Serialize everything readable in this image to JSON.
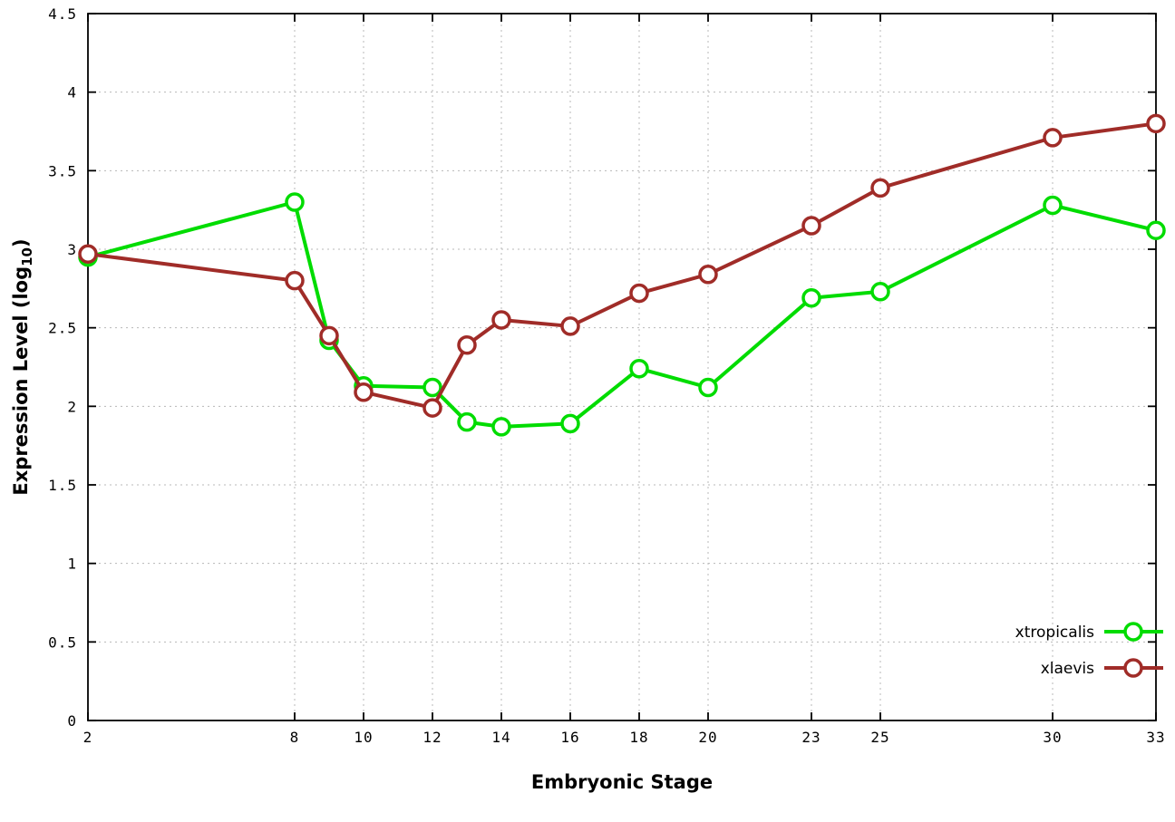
{
  "chart_data": {
    "type": "line",
    "title": "",
    "xlabel": "Embryonic Stage",
    "ylabel": "Expression Level (log10)",
    "ylabel_parts": {
      "main": "Expression Level (log",
      "sub": "10",
      "end": ")"
    },
    "xlim": [
      2,
      33
    ],
    "ylim": [
      0,
      4.5
    ],
    "grid": true,
    "legend_position": "bottom-right",
    "xticks": {
      "values": [
        2,
        8,
        10,
        12,
        14,
        16,
        18,
        20,
        23,
        25,
        30,
        33
      ],
      "labels": [
        "2",
        "8",
        "10",
        "12",
        "14",
        "16",
        "18",
        "20",
        "23",
        "25",
        "30",
        "33"
      ]
    },
    "yticks": {
      "values": [
        0,
        0.5,
        1,
        1.5,
        2,
        2.5,
        3,
        3.5,
        4,
        4.5
      ],
      "labels": [
        "0",
        "0.5",
        "1",
        "1.5",
        "2",
        "2.5",
        "3",
        "3.5",
        "4",
        "4.5"
      ]
    },
    "x": [
      2,
      8,
      9,
      10,
      12,
      13,
      14,
      16,
      18,
      20,
      23,
      25,
      30,
      33
    ],
    "series": [
      {
        "name": "xtropicalis",
        "color": "#00dc00",
        "values": [
          2.95,
          3.3,
          2.42,
          2.13,
          2.12,
          1.9,
          1.87,
          1.89,
          2.24,
          2.12,
          2.69,
          2.73,
          3.28,
          3.12
        ]
      },
      {
        "name": "xlaevis",
        "color": "#a02c28",
        "values": [
          2.97,
          2.8,
          2.45,
          2.09,
          1.99,
          2.39,
          2.55,
          2.51,
          2.72,
          2.84,
          3.15,
          3.39,
          3.71,
          3.8
        ]
      }
    ]
  },
  "style": {
    "grid_color": "#b8b8b8",
    "border_color": "#000000",
    "marker_fill": "#ffffff",
    "line_width": 4,
    "marker_radius": 9,
    "marker_stroke": 3.5
  }
}
